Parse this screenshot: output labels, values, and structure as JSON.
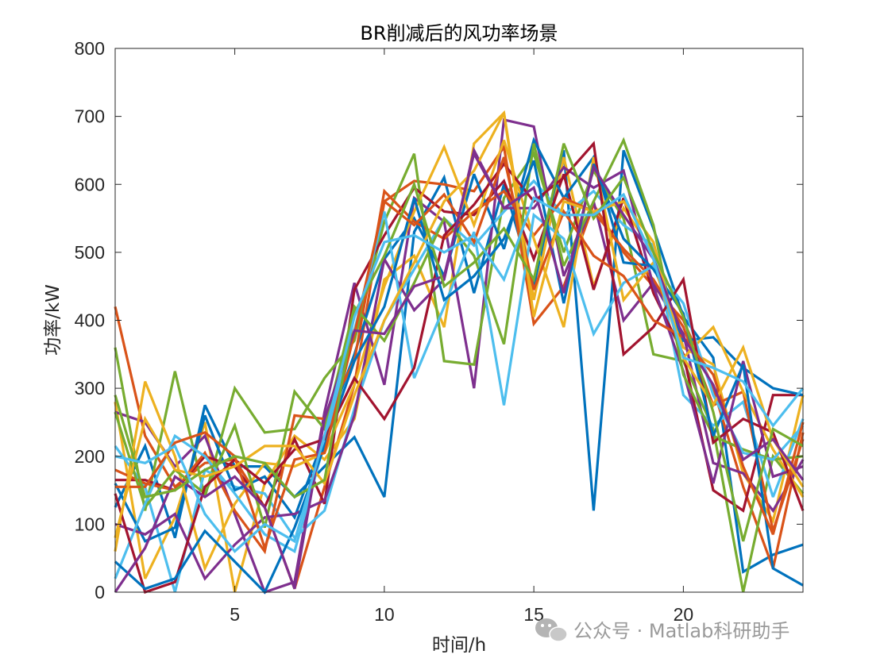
{
  "watermark": {
    "text": "公众号 · Matlab科研助手",
    "icon": "wechat-icon"
  },
  "chart_data": {
    "type": "line",
    "title": "BR削减后的风功率场景",
    "xlabel": "时间/h",
    "ylabel": "功率/kW",
    "xlim": [
      1,
      24
    ],
    "ylim": [
      0,
      800
    ],
    "xticks": [
      5,
      10,
      15,
      20
    ],
    "yticks": [
      0,
      100,
      200,
      300,
      400,
      500,
      600,
      700,
      800
    ],
    "grid": false,
    "x": [
      1,
      2,
      3,
      4,
      5,
      6,
      7,
      8,
      9,
      10,
      11,
      12,
      13,
      14,
      15,
      16,
      17,
      18,
      19,
      20,
      21,
      22,
      23,
      24
    ],
    "series": [
      {
        "color": "#0072BD",
        "values": [
          125,
          215,
          80,
          275,
          185,
          185,
          140,
          185,
          228,
          140,
          530,
          610,
          440,
          600,
          450,
          650,
          120,
          650,
          535,
          405,
          345,
          30,
          55,
          70
        ]
      },
      {
        "color": "#D95319",
        "values": [
          420,
          230,
          155,
          190,
          195,
          125,
          5,
          155,
          305,
          575,
          605,
          600,
          590,
          655,
          395,
          450,
          570,
          500,
          450,
          400,
          300,
          155,
          35,
          235
        ]
      },
      {
        "color": "#EDB120",
        "values": [
          280,
          20,
          110,
          250,
          0,
          160,
          230,
          195,
          255,
          460,
          495,
          390,
          660,
          705,
          430,
          640,
          450,
          565,
          500,
          360,
          335,
          175,
          105,
          290
        ]
      },
      {
        "color": "#7E2F8E",
        "values": [
          265,
          250,
          185,
          230,
          115,
          0,
          15,
          265,
          455,
          305,
          580,
          545,
          300,
          695,
          685,
          465,
          575,
          400,
          455,
          380,
          190,
          175,
          120,
          195
        ]
      },
      {
        "color": "#77AC30",
        "values": [
          360,
          120,
          325,
          140,
          300,
          235,
          240,
          315,
          370,
          545,
          645,
          340,
          335,
          580,
          645,
          500,
          620,
          550,
          350,
          340,
          240,
          0,
          200,
          145
        ]
      },
      {
        "color": "#4DBEEE",
        "values": [
          215,
          155,
          0,
          180,
          155,
          145,
          80,
          120,
          270,
          400,
          475,
          550,
          510,
          560,
          605,
          555,
          590,
          540,
          510,
          290,
          245,
          280,
          140,
          255
        ]
      },
      {
        "color": "#A2142F",
        "values": [
          165,
          165,
          150,
          200,
          185,
          125,
          225,
          130,
          445,
          525,
          595,
          560,
          555,
          605,
          490,
          615,
          445,
          580,
          440,
          350,
          150,
          120,
          290,
          290
        ]
      },
      {
        "color": "#0072BD",
        "values": [
          160,
          75,
          95,
          260,
          150,
          170,
          110,
          230,
          350,
          490,
          550,
          465,
          615,
          505,
          665,
          580,
          640,
          485,
          480,
          370,
          375,
          330,
          300,
          290
        ]
      },
      {
        "color": "#D95319",
        "values": [
          180,
          160,
          150,
          205,
          120,
          60,
          260,
          255,
          340,
          590,
          545,
          520,
          560,
          590,
          525,
          580,
          560,
          505,
          460,
          390,
          275,
          295,
          90,
          225
        ]
      },
      {
        "color": "#EDB120",
        "values": [
          60,
          310,
          200,
          35,
          130,
          190,
          185,
          205,
          305,
          450,
          560,
          655,
          540,
          665,
          520,
          390,
          640,
          430,
          485,
          345,
          390,
          295,
          210,
          140
        ]
      },
      {
        "color": "#7E2F8E",
        "values": [
          100,
          85,
          115,
          20,
          70,
          110,
          115,
          135,
          260,
          490,
          415,
          460,
          650,
          565,
          565,
          625,
          595,
          620,
          450,
          325,
          160,
          340,
          170,
          185
        ]
      },
      {
        "color": "#77AC30",
        "values": [
          265,
          125,
          180,
          145,
          245,
          95,
          295,
          240,
          420,
          370,
          455,
          550,
          495,
          365,
          660,
          480,
          575,
          665,
          540,
          320,
          230,
          210,
          195,
          200
        ]
      },
      {
        "color": "#4DBEEE",
        "values": [
          20,
          130,
          230,
          200,
          145,
          85,
          60,
          220,
          385,
          560,
          315,
          420,
          530,
          275,
          555,
          520,
          380,
          455,
          480,
          425,
          290,
          205,
          195,
          245
        ]
      },
      {
        "color": "#A2142F",
        "values": [
          145,
          0,
          15,
          155,
          195,
          160,
          210,
          225,
          315,
          255,
          330,
          525,
          570,
          630,
          575,
          610,
          660,
          350,
          390,
          460,
          220,
          255,
          235,
          120
        ]
      },
      {
        "color": "#0072BD",
        "values": [
          45,
          5,
          20,
          90,
          45,
          0,
          95,
          215,
          340,
          420,
          580,
          430,
          465,
          520,
          635,
          425,
          630,
          520,
          475,
          410,
          230,
          335,
          35,
          10
        ]
      },
      {
        "color": "#D95319",
        "values": [
          155,
          155,
          220,
          235,
          200,
          65,
          195,
          205,
          380,
          575,
          540,
          585,
          515,
          640,
          445,
          560,
          495,
          465,
          400,
          375,
          320,
          185,
          85,
          250
        ]
      },
      {
        "color": "#EDB120",
        "values": [
          80,
          255,
          180,
          170,
          185,
          215,
          215,
          160,
          290,
          400,
          485,
          575,
          620,
          705,
          405,
          575,
          560,
          575,
          515,
          345,
          275,
          360,
          225,
          155
        ]
      },
      {
        "color": "#7E2F8E",
        "values": [
          0,
          65,
          170,
          140,
          170,
          125,
          5,
          255,
          385,
          380,
          450,
          465,
          645,
          565,
          595,
          440,
          625,
          555,
          490,
          375,
          305,
          195,
          225,
          165
        ]
      },
      {
        "color": "#77AC30",
        "values": [
          290,
          140,
          150,
          180,
          200,
          190,
          140,
          165,
          410,
          495,
          600,
          450,
          485,
          535,
          460,
          660,
          550,
          610,
          500,
          405,
          265,
          75,
          240,
          215
        ]
      },
      {
        "color": "#4DBEEE",
        "values": [
          200,
          190,
          215,
          115,
          60,
          100,
          75,
          230,
          405,
          515,
          525,
          500,
          525,
          460,
          580,
          555,
          555,
          585,
          490,
          345,
          330,
          310,
          245,
          300
        ]
      }
    ]
  }
}
